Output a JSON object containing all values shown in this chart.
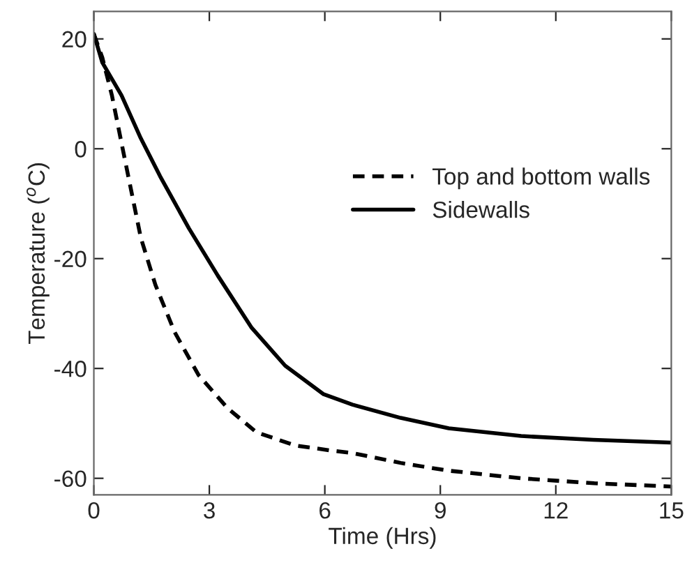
{
  "chart_data": {
    "type": "line",
    "xlabel": "Time (Hrs)",
    "ylabel": "Temperature ($^{o}$C)",
    "xlim": [
      0,
      15
    ],
    "ylim": [
      -63,
      25
    ],
    "xticks": [
      0,
      3,
      6,
      9,
      12,
      15
    ],
    "yticks": [
      -60,
      -40,
      -20,
      0,
      20
    ],
    "grid": false,
    "legend": "right",
    "series": [
      {
        "name": "Top and bottom walls",
        "color": "#000000",
        "line_style": "dashed",
        "x": [
          0,
          0.22,
          0.47,
          0.72,
          0.97,
          1.22,
          1.6,
          2.1,
          2.72,
          3.47,
          4.22,
          5.22,
          6.22,
          6.72,
          7.97,
          9.2,
          11.1,
          13,
          15
        ],
        "values": [
          20.9,
          16.6,
          9.7,
          1,
          -7.6,
          -16.2,
          -24.8,
          -33.4,
          -41.2,
          -47.2,
          -51.6,
          -54,
          -55,
          -55.4,
          -57.2,
          -58.6,
          -60,
          -60.9,
          -61.5
        ]
      },
      {
        "name": "Sidewalls",
        "color": "#000000",
        "line_style": "solid",
        "x": [
          0,
          0.22,
          0.72,
          1.22,
          1.72,
          2.47,
          3.22,
          4.1,
          4.97,
          5.97,
          6.72,
          7.97,
          9.22,
          11.1,
          12.97,
          15
        ],
        "values": [
          20.9,
          15.7,
          9.7,
          1.9,
          -5,
          -14.5,
          -23.1,
          -32.6,
          -39.5,
          -44.7,
          -46.6,
          -49,
          -50.9,
          -52.3,
          -53,
          -53.5
        ]
      }
    ]
  }
}
